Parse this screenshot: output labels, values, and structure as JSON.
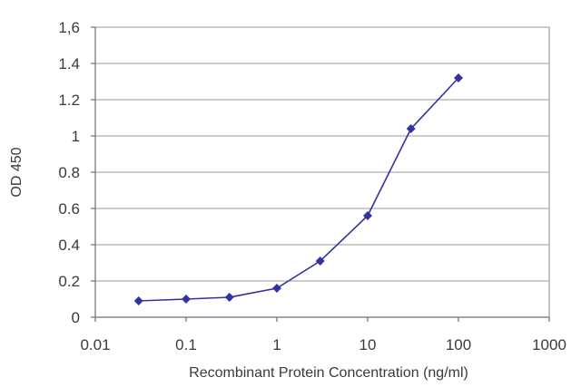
{
  "chart_data": {
    "type": "line",
    "title": "",
    "xlabel": "Recombinant Protein Concentration (ng/ml)",
    "ylabel": "OD 450",
    "xscale": "log",
    "xlim": [
      0.01,
      1000
    ],
    "ylim": [
      0,
      1.6
    ],
    "grid": "horizontal",
    "legend": "none",
    "x_tick_labels": [
      "0.01",
      "0.1",
      "1",
      "10",
      "100",
      "1000"
    ],
    "x_ticks": [
      0.01,
      0.1,
      1,
      10,
      100,
      1000
    ],
    "y_tick_labels": [
      "0",
      "0.2",
      "0.4",
      "0.6",
      "0.8",
      "1",
      "1.2",
      "1.4",
      "1,6"
    ],
    "y_ticks": [
      0,
      0.2,
      0.4,
      0.6,
      0.8,
      1.0,
      1.2,
      1.4,
      1.6
    ],
    "series": [
      {
        "color": "#3333a0",
        "x": [
          0.03,
          0.1,
          0.3,
          1,
          3,
          10,
          30,
          100
        ],
        "y": [
          0.09,
          0.1,
          0.11,
          0.16,
          0.31,
          0.56,
          1.04,
          1.32
        ]
      }
    ]
  }
}
